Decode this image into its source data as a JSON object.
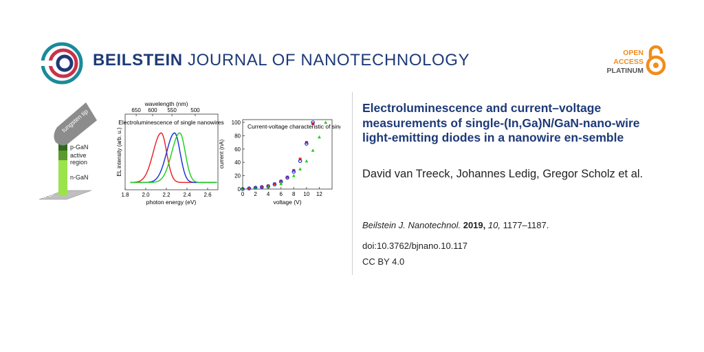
{
  "header": {
    "journal_bold": "BEILSTEIN",
    "journal_rest": "JOURNAL OF NANOTECHNOLOGY",
    "logo_icon": "beilstein-circle-logo",
    "open_access": [
      "OPEN",
      "ACCESS",
      "PLATINUM"
    ],
    "lock_icon": "open-access-lock"
  },
  "article": {
    "title": "Electroluminescence and current–voltage measurements of single-(In,Ga)N/GaN-nano-wire light-emitting diodes in a nanowire en-semble",
    "authors": "David van Treeck, Johannes Ledig, Gregor Scholz et al.",
    "journal_abbrev": "Beilstein J. Nanotechnol.",
    "year": "2019,",
    "volume": "10,",
    "pages": "1177–1187.",
    "doi": "doi:10.3762/bjnano.10.117",
    "license": "CC BY 4.0"
  },
  "graphic": {
    "tip_label": "tungsten tip",
    "layers": [
      "p-GaN",
      "active",
      "region",
      "n-GaN"
    ],
    "substrate": "n-Si"
  },
  "colors": {
    "brand_blue": "#1e3a78",
    "orange": "#f28c1a",
    "logo_teal": "#1a8a9a",
    "logo_red": "#c8324a"
  },
  "chart_data": [
    {
      "type": "line",
      "title": "Electroluminescence of single nanowires",
      "xlabel": "photon energy (eV)",
      "ylabel": "EL intensity (arb. u.)",
      "top_axis_label": "wavelength (nm)",
      "top_ticks": [
        "650",
        "600",
        "550",
        "500"
      ],
      "xlim": [
        1.8,
        2.7
      ],
      "x_ticks": [
        "1.8",
        "2.0",
        "2.2",
        "2.4",
        "2.6"
      ],
      "series": [
        {
          "name": "red",
          "color": "#e8262b",
          "peak": 2.15
        },
        {
          "name": "blue",
          "color": "#1c35d8",
          "peak": 2.28
        },
        {
          "name": "green",
          "color": "#22d022",
          "peak": 2.33
        }
      ]
    },
    {
      "type": "scatter",
      "title": "Current-voltage characteristic of single nanowires",
      "xlabel": "voltage (V)",
      "ylabel": "current (nA)",
      "xlim": [
        0,
        14
      ],
      "ylim": [
        0,
        100
      ],
      "x_ticks": [
        "0",
        "2",
        "4",
        "6",
        "8",
        "10",
        "12"
      ],
      "y_ticks": [
        "0",
        "20",
        "40",
        "60",
        "80",
        "100"
      ],
      "series": [
        {
          "name": "red",
          "color": "#e8262b",
          "x": [
            0,
            1,
            2,
            3,
            4,
            5,
            6,
            7,
            8,
            9,
            10,
            11
          ],
          "y": [
            0,
            1,
            2,
            3,
            5,
            8,
            12,
            18,
            28,
            45,
            70,
            98
          ]
        },
        {
          "name": "blue",
          "color": "#1c35d8",
          "x": [
            0,
            1,
            2,
            3,
            4,
            5,
            6,
            7,
            8,
            9,
            10,
            11
          ],
          "y": [
            0,
            1,
            2,
            3,
            4,
            7,
            11,
            17,
            26,
            42,
            68,
            100
          ]
        },
        {
          "name": "green",
          "color": "#22d022",
          "x": [
            0,
            2,
            4,
            6,
            8,
            9,
            10,
            11,
            12,
            13
          ],
          "y": [
            0,
            1,
            3,
            8,
            20,
            30,
            42,
            58,
            78,
            100
          ]
        }
      ]
    }
  ]
}
